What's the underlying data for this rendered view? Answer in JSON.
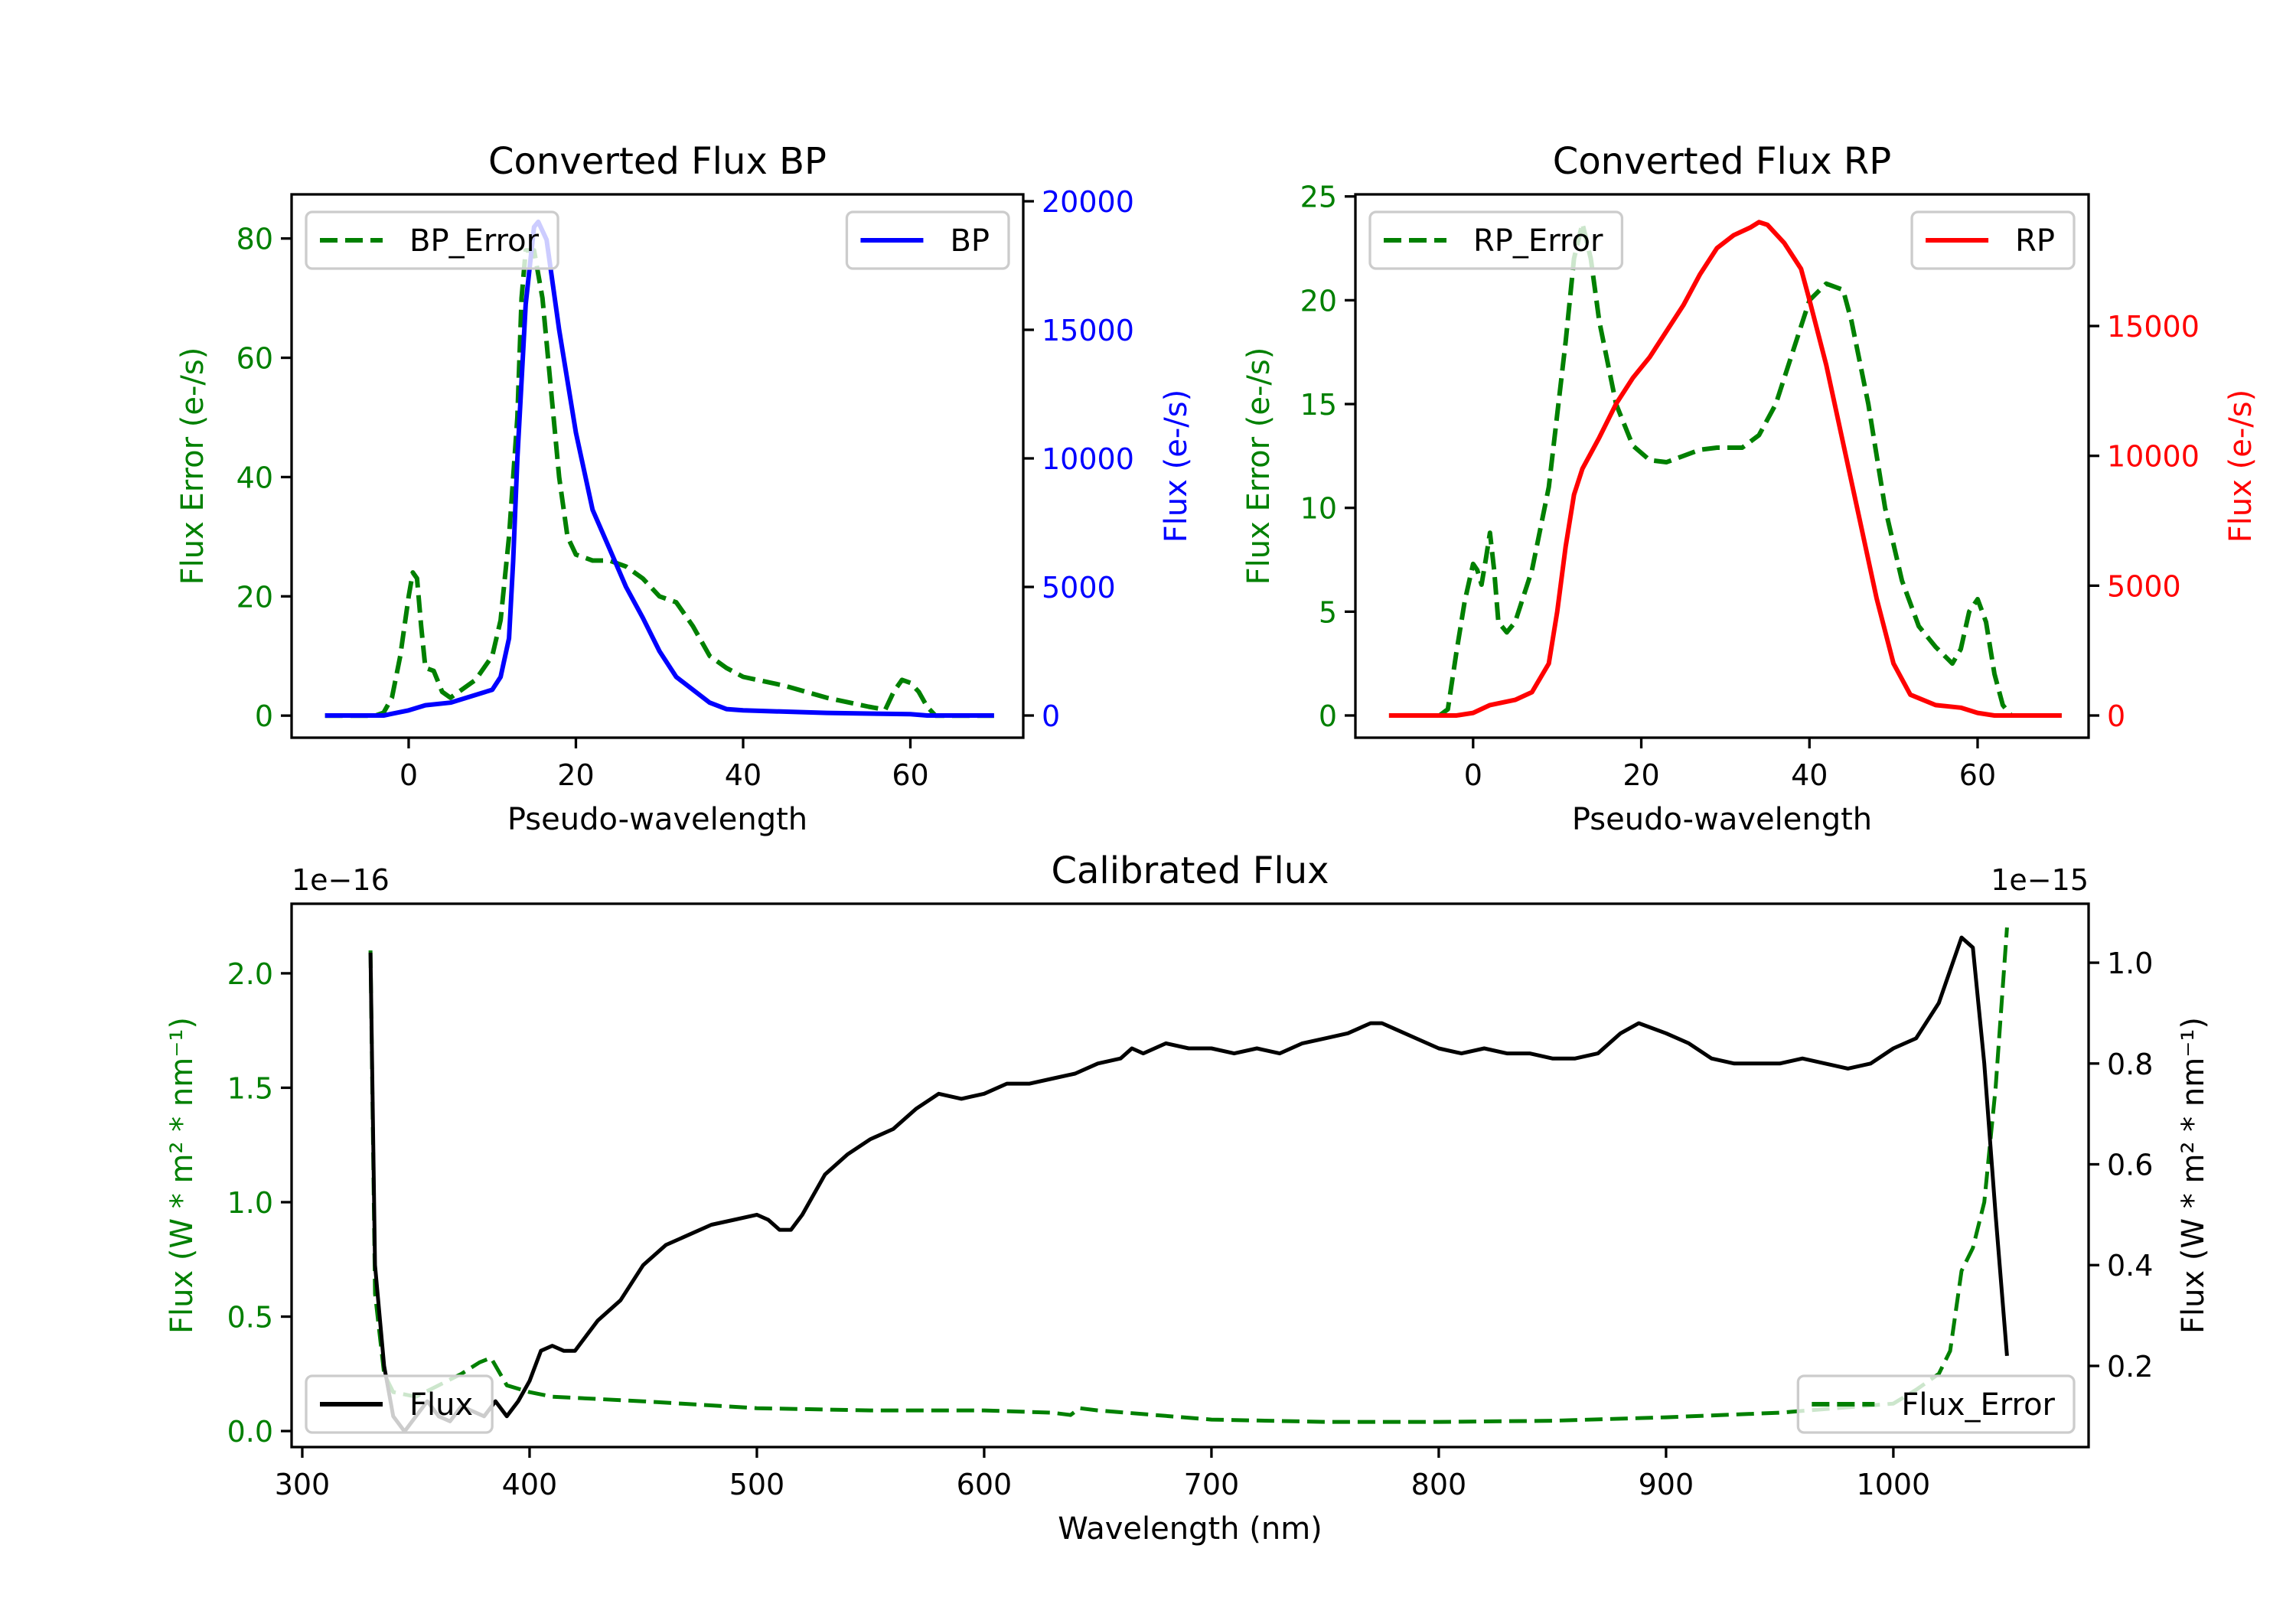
{
  "chart_data": [
    {
      "id": "bp",
      "type": "line",
      "title": "Converted Flux BP",
      "xlabel": "Pseudo-wavelength",
      "xlim": [
        -14,
        73.5
      ],
      "xticks": [
        {
          "v": 0,
          "label": "0"
        },
        {
          "v": 20,
          "label": "20"
        },
        {
          "v": 40,
          "label": "40"
        },
        {
          "v": 60,
          "label": "60"
        }
      ],
      "left_axis": {
        "label": "Flux Error (e-/s)",
        "color": "#008000",
        "ylim": [
          -3.7,
          87.4
        ],
        "ticks": [
          {
            "v": 0,
            "label": "0"
          },
          {
            "v": 20,
            "label": "20"
          },
          {
            "v": 40,
            "label": "40"
          },
          {
            "v": 60,
            "label": "60"
          },
          {
            "v": 80,
            "label": "80"
          }
        ]
      },
      "right_axis": {
        "label": "Flux (e-/s)",
        "color": "#0000ff",
        "ylim": [
          -863,
          20268
        ],
        "ticks": [
          {
            "v": 0,
            "label": "0"
          },
          {
            "v": 5000,
            "label": "5000"
          },
          {
            "v": 10000,
            "label": "10000"
          },
          {
            "v": 15000,
            "label": "15000"
          },
          {
            "v": 20000,
            "label": "20000"
          }
        ]
      },
      "series": [
        {
          "name": "BP_Error",
          "axis": "left",
          "color": "#008000",
          "style": "dashed",
          "legend": "upper left",
          "x": [
            -10,
            -4,
            -3,
            -2,
            -1,
            0,
            0.5,
            1,
            1.5,
            2,
            3,
            4,
            5,
            6,
            8,
            10,
            11,
            12,
            13,
            13.5,
            14,
            15,
            16,
            17,
            18,
            19,
            20,
            22,
            24,
            26,
            28,
            30,
            32,
            34,
            36,
            38,
            40,
            45,
            50,
            55,
            57,
            58,
            59,
            60,
            61,
            62,
            63,
            70
          ],
          "y": [
            0,
            0,
            0.5,
            3,
            10,
            20,
            24,
            23,
            15,
            8,
            7.5,
            4,
            3,
            4,
            6,
            10,
            16,
            30,
            50,
            70,
            78,
            78,
            70,
            55,
            40,
            30,
            27,
            26,
            26,
            25,
            23,
            20,
            19,
            15,
            10,
            8,
            6.5,
            5,
            3,
            1.5,
            1,
            4,
            6,
            5.5,
            4,
            1.5,
            0,
            0
          ]
        },
        {
          "name": "BP",
          "axis": "right",
          "color": "#0000ff",
          "style": "solid",
          "legend": "upper right",
          "x": [
            -10,
            -3,
            0,
            2,
            5,
            8,
            10,
            11,
            12,
            12.5,
            13,
            14,
            15,
            15.5,
            16.5,
            18,
            20,
            22,
            24,
            26,
            28,
            30,
            32,
            34,
            36,
            38,
            40,
            50,
            60,
            62,
            70
          ],
          "y": [
            0,
            0,
            200,
            400,
            500,
            800,
            1000,
            1500,
            3000,
            6000,
            10000,
            16000,
            19000,
            19200,
            18500,
            15000,
            11000,
            8000,
            6500,
            5000,
            3800,
            2500,
            1500,
            1000,
            500,
            250,
            200,
            100,
            50,
            0,
            0
          ]
        }
      ]
    },
    {
      "id": "rp",
      "type": "line",
      "title": "Converted Flux RP",
      "xlabel": "Pseudo-wavelength",
      "xlim": [
        -14,
        73.2
      ],
      "xticks": [
        {
          "v": 0,
          "label": "0"
        },
        {
          "v": 20,
          "label": "20"
        },
        {
          "v": 40,
          "label": "40"
        },
        {
          "v": 60,
          "label": "60"
        }
      ],
      "left_axis": {
        "label": "Flux Error (e-/s)",
        "color": "#008000",
        "ylim": [
          -1.07,
          25.1
        ],
        "ticks": [
          {
            "v": 0,
            "label": "0"
          },
          {
            "v": 5,
            "label": "5"
          },
          {
            "v": 10,
            "label": "10"
          },
          {
            "v": 15,
            "label": "15"
          },
          {
            "v": 20,
            "label": "20"
          },
          {
            "v": 25,
            "label": "25"
          }
        ]
      },
      "right_axis": {
        "label": "Flux (e-/s)",
        "color": "#ff0000",
        "ylim": [
          -855,
          20070
        ],
        "ticks": [
          {
            "v": 0,
            "label": "0"
          },
          {
            "v": 5000,
            "label": "5000"
          },
          {
            "v": 10000,
            "label": "10000"
          },
          {
            "v": 15000,
            "label": "15000"
          }
        ]
      },
      "series": [
        {
          "name": "RP_Error",
          "axis": "left",
          "color": "#008000",
          "style": "dashed",
          "legend": "upper left",
          "x": [
            -10,
            -4,
            -3,
            -2,
            -1,
            0,
            0.5,
            1,
            1.5,
            2,
            2.5,
            3,
            4,
            5,
            7,
            9,
            11,
            12,
            13,
            14,
            15,
            17,
            19,
            21,
            23,
            25,
            27,
            29,
            32,
            34,
            36,
            38,
            40,
            42,
            44,
            45,
            47,
            49,
            51,
            53,
            55,
            57,
            58,
            59,
            60,
            61,
            62,
            63,
            64,
            70
          ],
          "y": [
            0,
            0,
            0.3,
            3,
            5.5,
            7.3,
            7,
            6.3,
            7.5,
            8.8,
            7,
            4.5,
            4,
            4.5,
            7,
            11,
            18,
            22,
            23.7,
            22,
            19,
            15,
            13,
            12.3,
            12.2,
            12.5,
            12.8,
            12.9,
            12.9,
            13.5,
            15,
            17.5,
            20,
            20.8,
            20.5,
            19,
            15,
            10,
            6.5,
            4.3,
            3.3,
            2.5,
            3.2,
            5,
            5.6,
            4.5,
            2,
            0.5,
            0,
            0
          ]
        },
        {
          "name": "RP",
          "axis": "right",
          "color": "#ff0000",
          "style": "solid",
          "legend": "upper right",
          "x": [
            -10,
            -2,
            0,
            2,
            5,
            7,
            9,
            10,
            11,
            12,
            13,
            15,
            17,
            19,
            21,
            23,
            25,
            27,
            29,
            31,
            33,
            34,
            35,
            37,
            39,
            40,
            42,
            44,
            46,
            48,
            50,
            52,
            55,
            58,
            60,
            62,
            70
          ],
          "y": [
            0,
            0,
            100,
            400,
            600,
            900,
            2000,
            4000,
            6500,
            8500,
            9500,
            10700,
            12000,
            13000,
            13800,
            14800,
            15800,
            17000,
            18000,
            18500,
            18800,
            19000,
            18900,
            18200,
            17200,
            16000,
            13500,
            10500,
            7500,
            4500,
            2000,
            800,
            400,
            300,
            100,
            0,
            0
          ]
        }
      ]
    },
    {
      "id": "cal",
      "type": "line",
      "title": "Calibrated Flux",
      "xlabel": "Wavelength (nm)",
      "xlim": [
        295.3,
        1085.9
      ],
      "xticks": [
        {
          "v": 300,
          "label": "300"
        },
        {
          "v": 400,
          "label": "400"
        },
        {
          "v": 500,
          "label": "500"
        },
        {
          "v": 600,
          "label": "600"
        },
        {
          "v": 700,
          "label": "700"
        },
        {
          "v": 800,
          "label": "800"
        },
        {
          "v": 900,
          "label": "900"
        },
        {
          "v": 1000,
          "label": "1000"
        }
      ],
      "left_axis": {
        "label": "Flux (W * m² * nm⁻¹)",
        "color": "#008000",
        "ylim": [
          -0.07,
          2.304
        ],
        "offset_text": "1e−16",
        "ticks": [
          {
            "v": 0,
            "label": "0.0"
          },
          {
            "v": 0.5,
            "label": "0.5"
          },
          {
            "v": 1,
            "label": "1.0"
          },
          {
            "v": 1.5,
            "label": "1.5"
          },
          {
            "v": 2,
            "label": "2.0"
          }
        ]
      },
      "right_axis": {
        "label": "Flux (W * m² * nm⁻¹)",
        "color": "#000000",
        "ylim": [
          0.039,
          1.117
        ],
        "offset_text": "1e−15",
        "ticks": [
          {
            "v": 0.2,
            "label": "0.2"
          },
          {
            "v": 0.4,
            "label": "0.4"
          },
          {
            "v": 0.6,
            "label": "0.6"
          },
          {
            "v": 0.8,
            "label": "0.8"
          },
          {
            "v": 1.0,
            "label": "1.0"
          }
        ]
      },
      "series": [
        {
          "name": "Flux_Error",
          "axis": "left",
          "color": "#008000",
          "style": "dashed",
          "legend": "lower right",
          "x": [
            330,
            332,
            336,
            340,
            350,
            360,
            370,
            378,
            383,
            390,
            400,
            410,
            450,
            500,
            550,
            600,
            630,
            638,
            642,
            650,
            700,
            750,
            800,
            850,
            900,
            950,
            1000,
            1010,
            1020,
            1025,
            1030,
            1035,
            1040,
            1045,
            1050
          ],
          "y": [
            2.1,
            0.6,
            0.25,
            0.17,
            0.15,
            0.2,
            0.25,
            0.3,
            0.32,
            0.2,
            0.17,
            0.15,
            0.13,
            0.1,
            0.09,
            0.09,
            0.08,
            0.07,
            0.1,
            0.09,
            0.05,
            0.04,
            0.04,
            0.045,
            0.06,
            0.08,
            0.12,
            0.18,
            0.25,
            0.35,
            0.7,
            0.8,
            1.0,
            1.5,
            2.2
          ]
        },
        {
          "name": "Flux",
          "axis": "right",
          "color": "#000000",
          "style": "solid",
          "legend": "lower left",
          "x": [
            330,
            332,
            336,
            340,
            345,
            350,
            355,
            360,
            365,
            370,
            380,
            385,
            390,
            395,
            400,
            405,
            410,
            415,
            420,
            425,
            430,
            440,
            450,
            460,
            470,
            480,
            490,
            500,
            505,
            510,
            515,
            520,
            530,
            540,
            550,
            560,
            570,
            580,
            590,
            600,
            610,
            620,
            630,
            640,
            650,
            660,
            665,
            670,
            680,
            690,
            700,
            710,
            720,
            730,
            740,
            750,
            760,
            770,
            775,
            780,
            790,
            800,
            810,
            820,
            830,
            840,
            850,
            860,
            870,
            880,
            888,
            900,
            910,
            920,
            930,
            940,
            950,
            960,
            970,
            980,
            990,
            1000,
            1010,
            1020,
            1030,
            1035,
            1040,
            1045,
            1050
          ],
          "y": [
            1.02,
            0.4,
            0.2,
            0.1,
            0.07,
            0.1,
            0.13,
            0.1,
            0.09,
            0.12,
            0.1,
            0.13,
            0.1,
            0.13,
            0.17,
            0.23,
            0.24,
            0.23,
            0.23,
            0.26,
            0.29,
            0.33,
            0.4,
            0.44,
            0.46,
            0.48,
            0.49,
            0.5,
            0.49,
            0.47,
            0.47,
            0.5,
            0.58,
            0.62,
            0.65,
            0.67,
            0.71,
            0.74,
            0.73,
            0.74,
            0.76,
            0.76,
            0.77,
            0.78,
            0.8,
            0.81,
            0.83,
            0.82,
            0.84,
            0.83,
            0.83,
            0.82,
            0.83,
            0.82,
            0.84,
            0.85,
            0.86,
            0.88,
            0.88,
            0.87,
            0.85,
            0.83,
            0.82,
            0.83,
            0.82,
            0.82,
            0.81,
            0.81,
            0.82,
            0.86,
            0.88,
            0.86,
            0.84,
            0.81,
            0.8,
            0.8,
            0.8,
            0.81,
            0.8,
            0.79,
            0.8,
            0.83,
            0.85,
            0.92,
            1.05,
            1.03,
            0.8,
            0.5,
            0.22
          ]
        }
      ]
    }
  ]
}
